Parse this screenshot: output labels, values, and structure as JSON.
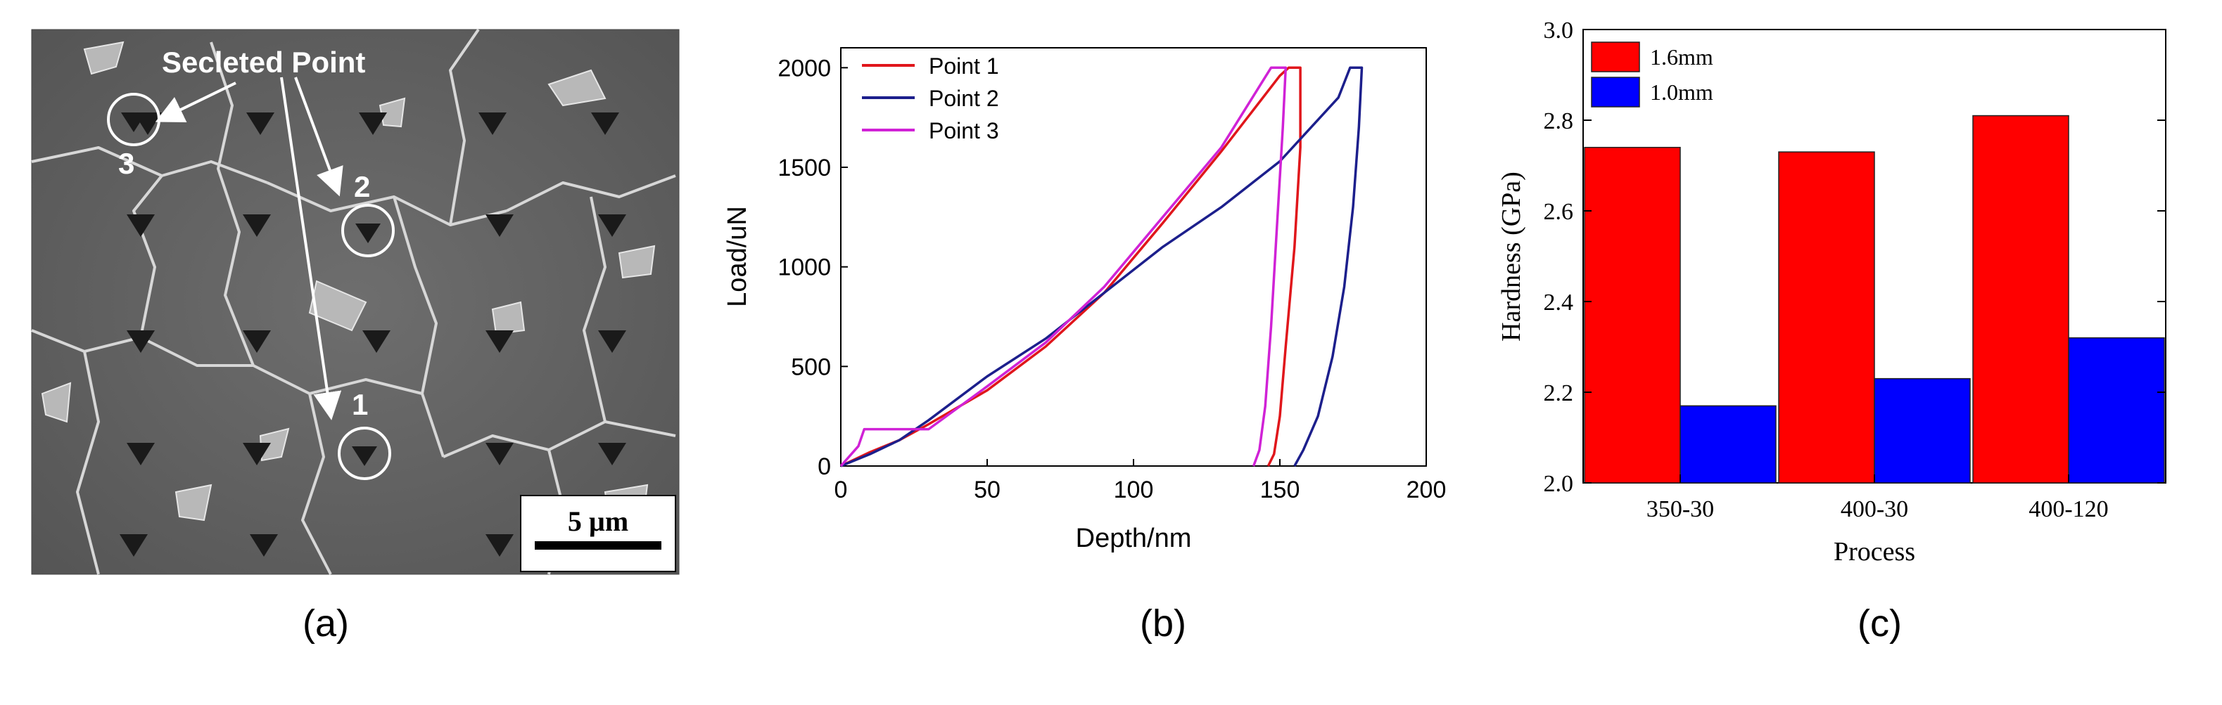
{
  "panel_a": {
    "caption": "(a)",
    "annotation": "Secleted Point",
    "points": [
      "1",
      "2",
      "3"
    ],
    "scale_bar": "5 µm"
  },
  "panel_b": {
    "caption": "(b)"
  },
  "panel_c": {
    "caption": "(c)"
  },
  "colors": {
    "point1": "#e0161b",
    "point2": "#1c1f8c",
    "point3": "#d022d6",
    "bar_16": "#ff0000",
    "bar_10": "#0000ff"
  },
  "chart_data": [
    {
      "type": "line",
      "xlabel": "Depth/nm",
      "ylabel": "Load/uN",
      "xlim": [
        0,
        200
      ],
      "ylim": [
        0,
        2100
      ],
      "xticks": [
        "0",
        "50",
        "100",
        "150",
        "200"
      ],
      "yticks": [
        "0",
        "500",
        "1000",
        "1500",
        "2000"
      ],
      "legend_placement": "top-left",
      "series": [
        {
          "name": "Point 1",
          "x": [
            0,
            10,
            20,
            30,
            50,
            70,
            90,
            110,
            130,
            150,
            153,
            157,
            157,
            155,
            152,
            150,
            148,
            146
          ],
          "y": [
            0,
            70,
            130,
            210,
            380,
            600,
            870,
            1220,
            1580,
            1960,
            2000,
            2000,
            1600,
            1100,
            600,
            250,
            60,
            0
          ]
        },
        {
          "name": "Point 2",
          "x": [
            0,
            10,
            20,
            30,
            50,
            70,
            90,
            110,
            130,
            150,
            170,
            174,
            178,
            177,
            175,
            172,
            168,
            163,
            158,
            155
          ],
          "y": [
            0,
            60,
            130,
            230,
            450,
            640,
            870,
            1100,
            1300,
            1530,
            1850,
            2000,
            2000,
            1700,
            1300,
            900,
            550,
            250,
            80,
            0
          ]
        },
        {
          "name": "Point 3",
          "x": [
            0,
            6,
            8,
            18,
            30,
            50,
            70,
            90,
            110,
            130,
            147,
            152,
            151,
            149,
            147,
            145,
            143,
            141
          ],
          "y": [
            0,
            100,
            185,
            185,
            185,
            400,
            620,
            900,
            1250,
            1600,
            2000,
            2000,
            1700,
            1200,
            700,
            300,
            80,
            0
          ]
        }
      ]
    },
    {
      "type": "bar",
      "xlabel": "Process",
      "ylabel": "Hardness (GPa)",
      "ylim": [
        2.0,
        3.0
      ],
      "yticks": [
        "2.0",
        "2.2",
        "2.4",
        "2.6",
        "2.8",
        "3.0"
      ],
      "categories": [
        "350-30",
        "400-30",
        "400-120"
      ],
      "legend_placement": "top-left",
      "series": [
        {
          "name": "1.6mm",
          "values": [
            2.74,
            2.73,
            2.81
          ]
        },
        {
          "name": "1.0mm",
          "values": [
            2.17,
            2.23,
            2.32
          ]
        }
      ]
    }
  ]
}
